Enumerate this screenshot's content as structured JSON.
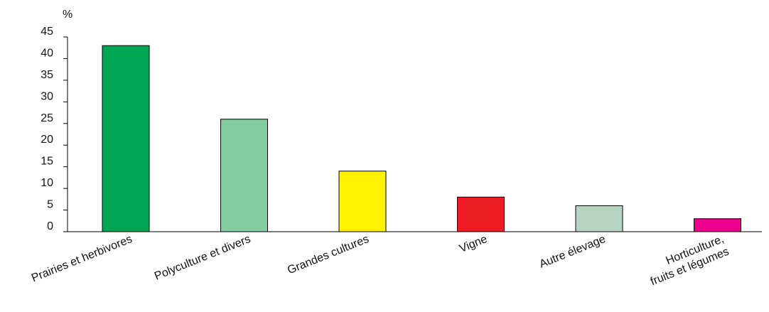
{
  "chart_data": {
    "type": "bar",
    "ylabel": "%",
    "ylim": [
      0,
      45
    ],
    "yticks": [
      0,
      5,
      10,
      15,
      20,
      25,
      30,
      35,
      40,
      45
    ],
    "grid": false,
    "categories": [
      [
        "Prairies et herbivores"
      ],
      [
        "Polyculture et divers"
      ],
      [
        "Grandes cultures"
      ],
      [
        "Vigne"
      ],
      [
        "Autre élevage"
      ],
      [
        "Horticulture,",
        "fruits et légumes"
      ]
    ],
    "values": [
      43,
      26,
      14,
      8,
      6,
      3
    ],
    "colors": [
      "#00a651",
      "#82cc9f",
      "#fff200",
      "#ed1c24",
      "#b7d3c2",
      "#ec008c"
    ]
  }
}
